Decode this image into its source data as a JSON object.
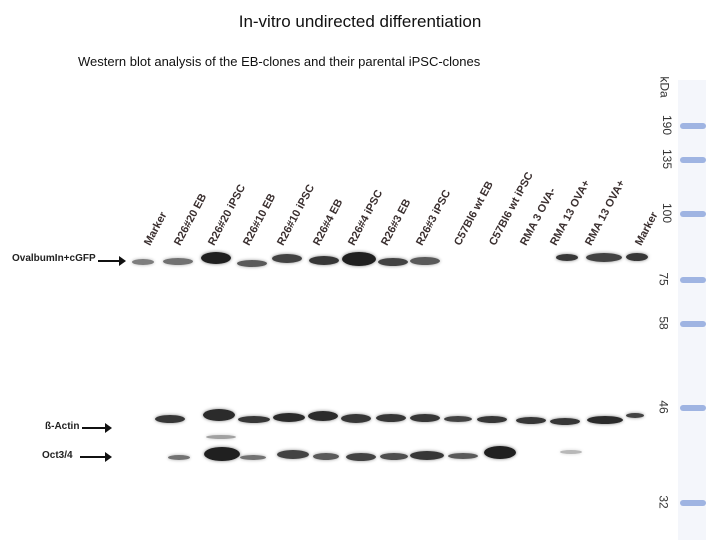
{
  "title": "In-vitro undirected differentiation",
  "subtitle": "Western blot analysis of the EB-clones and their parental iPSC-clones",
  "lanes": [
    "Marker",
    "R26#20 EB",
    "R26#20 iPSC",
    "R26#10 EB",
    "R26#10 iPSC",
    "R26#4 EB",
    "R26#4 iPSC",
    "R26#3 EB",
    "R26#3 iPSC",
    "C57Bl6 wt EB",
    "C57Bl6 wt iPSC",
    "RMA 3 OVA-",
    "RMA 13 OVA+",
    "RMA 13 OVA+",
    "Marker"
  ],
  "rows": {
    "ovalbumin": "OvalbumIn+cGFP",
    "actin": "ß-Actin",
    "oct": "Oct3/4"
  },
  "ladder": {
    "unit": "kDa",
    "markers": [
      "190",
      "135",
      "100",
      "75",
      "58",
      "46",
      "32"
    ]
  },
  "colors": {
    "band": "#1a1a1a",
    "ladder": "#9fb4e2"
  }
}
